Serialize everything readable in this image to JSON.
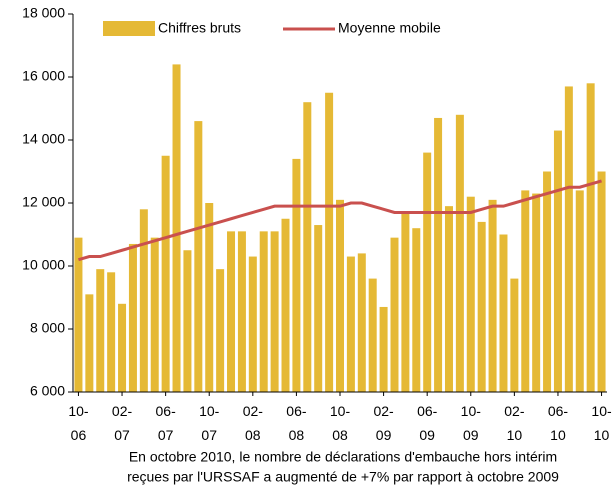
{
  "chart_data": {
    "type": "bar_line",
    "categories": [
      "10-06",
      null,
      null,
      null,
      "02-07",
      null,
      null,
      null,
      "06-07",
      null,
      null,
      null,
      "10-07",
      null,
      null,
      null,
      "02-08",
      null,
      null,
      null,
      "06-08",
      null,
      null,
      null,
      "10-08",
      null,
      null,
      null,
      "02-09",
      null,
      null,
      null,
      "06-09",
      null,
      null,
      null,
      "10-09",
      null,
      null,
      null,
      "02-10",
      null,
      null,
      null,
      "06-10",
      null,
      null,
      null,
      "10-10"
    ],
    "series": [
      {
        "name": "Chiffres bruts",
        "type": "bar",
        "color": "#e5b935",
        "values": [
          10900,
          9100,
          9900,
          9800,
          8800,
          10700,
          11800,
          10900,
          13500,
          16400,
          10500,
          14600,
          12000,
          9900,
          11100,
          11100,
          10300,
          11100,
          11100,
          11500,
          13400,
          15200,
          11300,
          15500,
          12100,
          10300,
          10400,
          9600,
          8700,
          10900,
          11700,
          11200,
          13600,
          14700,
          11900,
          14800,
          12200,
          11400,
          12100,
          11000,
          9600,
          12400,
          12300,
          13000,
          14300,
          15700,
          12400,
          15800,
          13000
        ]
      },
      {
        "name": "Moyenne mobile",
        "type": "line",
        "color": "#c9504e",
        "values": [
          10200,
          10300,
          10300,
          10400,
          10500,
          10600,
          10700,
          10800,
          10900,
          11000,
          11100,
          11200,
          11300,
          11400,
          11500,
          11600,
          11700,
          11800,
          11900,
          11900,
          11900,
          11900,
          11900,
          11900,
          11900,
          12000,
          12000,
          11900,
          11800,
          11700,
          11700,
          11700,
          11700,
          11700,
          11700,
          11700,
          11700,
          11800,
          11900,
          11900,
          12000,
          12100,
          12200,
          12300,
          12400,
          12500,
          12500,
          12600,
          12700
        ]
      }
    ],
    "ylim": [
      6000,
      18000
    ],
    "yticks": [
      {
        "value": 6000,
        "label": "6 000"
      },
      {
        "value": 8000,
        "label": "8 000"
      },
      {
        "value": 10000,
        "label": "10 000"
      },
      {
        "value": 12000,
        "label": "12 000"
      },
      {
        "value": 14000,
        "label": "14 000"
      },
      {
        "value": 16000,
        "label": "16 000"
      },
      {
        "value": 18000,
        "label": "18 000"
      }
    ],
    "grid": false,
    "legend": "top",
    "annotations": [
      "En octobre 2010, le nombre de déclarations d'embauche hors intérim",
      "reçues par l'URSSAF a augmenté de +7% par rapport à octobre 2009"
    ]
  }
}
